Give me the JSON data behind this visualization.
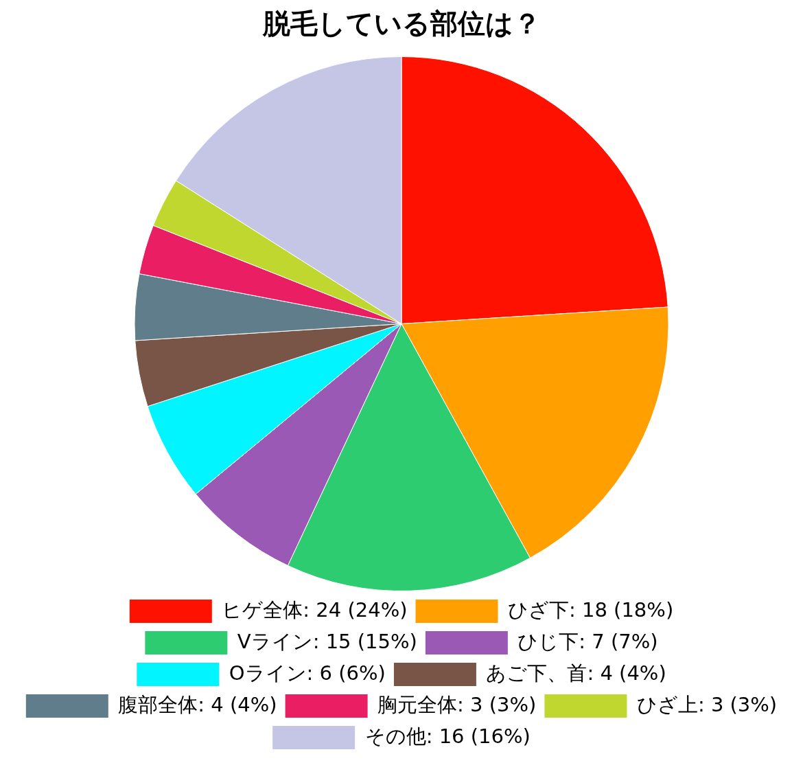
{
  "chart_data": {
    "type": "pie",
    "title": "脱毛している部位は？",
    "categories": [
      "ヒゲ全体",
      "ひざ下",
      "Vライン",
      "ひじ下",
      "Oライン",
      "あご下、首",
      "腹部全体",
      "胸元全体",
      "ひざ上",
      "その他"
    ],
    "values": [
      24,
      18,
      15,
      7,
      6,
      4,
      4,
      3,
      3,
      16
    ],
    "colors": [
      "#ff1100",
      "#ffa000",
      "#2ecc71",
      "#9b59b6",
      "#00f5ff",
      "#795548",
      "#607d8b",
      "#e91e63",
      "#c0d72f",
      "#c5c5e6"
    ],
    "value_labels": [
      "24 (24%)",
      "18 (18%)",
      "15 (15%)",
      "7 (7%)",
      "6 (6%)",
      "4 (4%)",
      "4 (4%)",
      "3 (3%)",
      "3 (3%)",
      "16 (16%)"
    ],
    "legend": "bottom"
  }
}
